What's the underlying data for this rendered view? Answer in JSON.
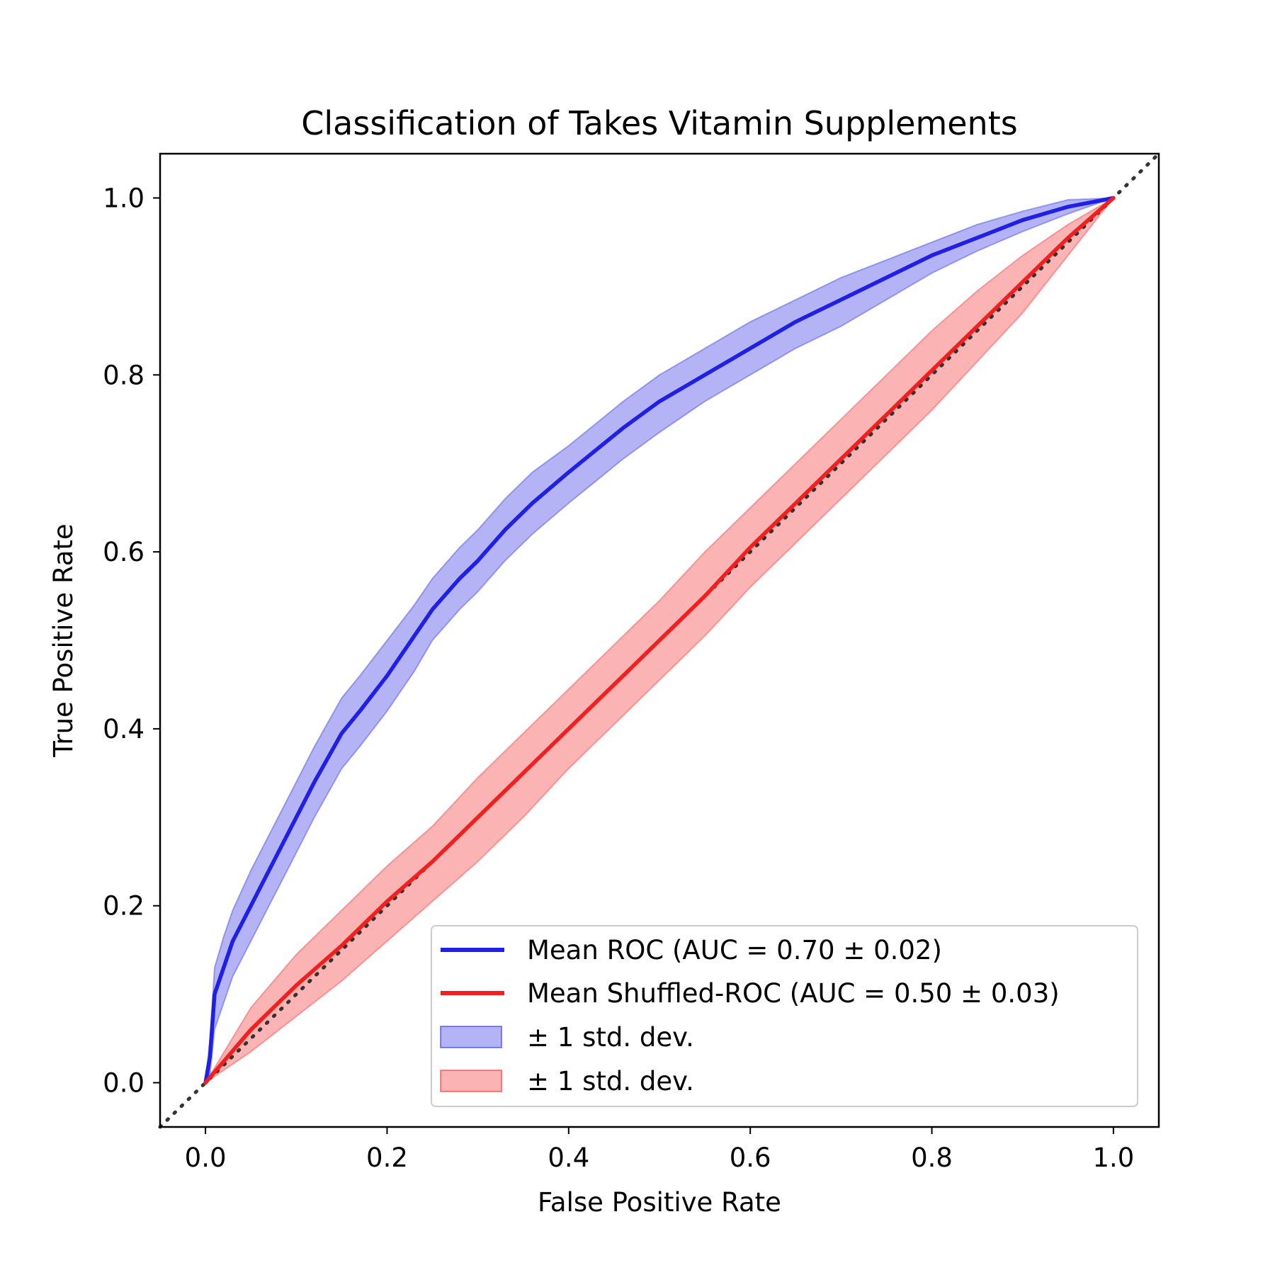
{
  "chart_data": {
    "type": "line",
    "title": "Classification of Takes Vitamin Supplements",
    "xlabel": "False Positive Rate",
    "ylabel": "True Positive Rate",
    "xlim": [
      -0.05,
      1.05
    ],
    "ylim": [
      -0.05,
      1.05
    ],
    "xticks": [
      "0.0",
      "0.2",
      "0.4",
      "0.6",
      "0.8",
      "1.0"
    ],
    "yticks": [
      "0.0",
      "0.2",
      "0.4",
      "0.6",
      "0.8",
      "1.0"
    ],
    "grid": false,
    "legend_position": "lower-right",
    "reference_line": {
      "style": "dotted",
      "color": "#333333",
      "x": [
        -0.05,
        1.05
      ],
      "y": [
        -0.05,
        1.05
      ]
    },
    "series": [
      {
        "name": "Mean ROC (AUC = 0.70 ± 0.02)",
        "color": "#1f1fe6",
        "x": [
          0,
          0.005,
          0.01,
          0.02,
          0.03,
          0.05,
          0.07,
          0.09,
          0.12,
          0.15,
          0.17,
          0.2,
          0.23,
          0.25,
          0.28,
          0.3,
          0.33,
          0.36,
          0.4,
          0.43,
          0.46,
          0.5,
          0.55,
          0.6,
          0.65,
          0.7,
          0.75,
          0.8,
          0.85,
          0.9,
          0.95,
          1.0
        ],
        "y": [
          0,
          0.03,
          0.1,
          0.13,
          0.16,
          0.2,
          0.24,
          0.28,
          0.34,
          0.395,
          0.42,
          0.46,
          0.505,
          0.535,
          0.57,
          0.59,
          0.625,
          0.655,
          0.69,
          0.715,
          0.74,
          0.77,
          0.8,
          0.83,
          0.86,
          0.885,
          0.91,
          0.935,
          0.955,
          0.975,
          0.99,
          1.0
        ]
      },
      {
        "name": "Mean Shuffled-ROC (AUC = 0.50 ± 0.03)",
        "color": "#f21f1f",
        "x": [
          0,
          0.05,
          0.1,
          0.15,
          0.2,
          0.25,
          0.3,
          0.35,
          0.4,
          0.45,
          0.5,
          0.55,
          0.6,
          0.65,
          0.7,
          0.75,
          0.8,
          0.85,
          0.9,
          0.95,
          1.0
        ],
        "y": [
          0,
          0.06,
          0.11,
          0.155,
          0.205,
          0.25,
          0.3,
          0.35,
          0.4,
          0.45,
          0.5,
          0.55,
          0.605,
          0.655,
          0.705,
          0.755,
          0.805,
          0.855,
          0.905,
          0.955,
          1.0
        ]
      }
    ],
    "bands": [
      {
        "name": "± 1 std. dev.",
        "color": "#1f1fe6",
        "x": [
          0,
          0.005,
          0.01,
          0.02,
          0.03,
          0.05,
          0.07,
          0.09,
          0.12,
          0.15,
          0.17,
          0.2,
          0.23,
          0.25,
          0.28,
          0.3,
          0.33,
          0.36,
          0.4,
          0.43,
          0.46,
          0.5,
          0.55,
          0.6,
          0.65,
          0.7,
          0.75,
          0.8,
          0.85,
          0.9,
          0.95,
          1.0
        ],
        "upper": [
          0,
          0.05,
          0.13,
          0.165,
          0.195,
          0.24,
          0.28,
          0.32,
          0.38,
          0.435,
          0.46,
          0.5,
          0.54,
          0.57,
          0.605,
          0.625,
          0.66,
          0.69,
          0.72,
          0.745,
          0.77,
          0.8,
          0.83,
          0.86,
          0.885,
          0.91,
          0.93,
          0.95,
          0.97,
          0.985,
          0.998,
          1.0
        ],
        "lower": [
          0,
          0.01,
          0.06,
          0.09,
          0.12,
          0.16,
          0.2,
          0.24,
          0.3,
          0.355,
          0.38,
          0.42,
          0.465,
          0.5,
          0.535,
          0.555,
          0.59,
          0.62,
          0.655,
          0.68,
          0.705,
          0.735,
          0.77,
          0.8,
          0.83,
          0.855,
          0.885,
          0.915,
          0.94,
          0.962,
          0.982,
          1.0
        ]
      },
      {
        "name": "± 1 std. dev.",
        "color": "#f21f1f",
        "x": [
          0,
          0.05,
          0.1,
          0.15,
          0.2,
          0.25,
          0.3,
          0.35,
          0.4,
          0.45,
          0.5,
          0.55,
          0.6,
          0.65,
          0.7,
          0.75,
          0.8,
          0.85,
          0.9,
          0.95,
          1.0
        ],
        "upper": [
          0,
          0.085,
          0.145,
          0.195,
          0.245,
          0.29,
          0.345,
          0.395,
          0.445,
          0.495,
          0.545,
          0.6,
          0.65,
          0.7,
          0.75,
          0.8,
          0.85,
          0.895,
          0.935,
          0.97,
          1.0
        ],
        "lower": [
          0,
          0.035,
          0.075,
          0.115,
          0.16,
          0.205,
          0.25,
          0.3,
          0.355,
          0.405,
          0.455,
          0.505,
          0.56,
          0.61,
          0.66,
          0.71,
          0.76,
          0.815,
          0.87,
          0.935,
          1.0
        ]
      }
    ]
  }
}
